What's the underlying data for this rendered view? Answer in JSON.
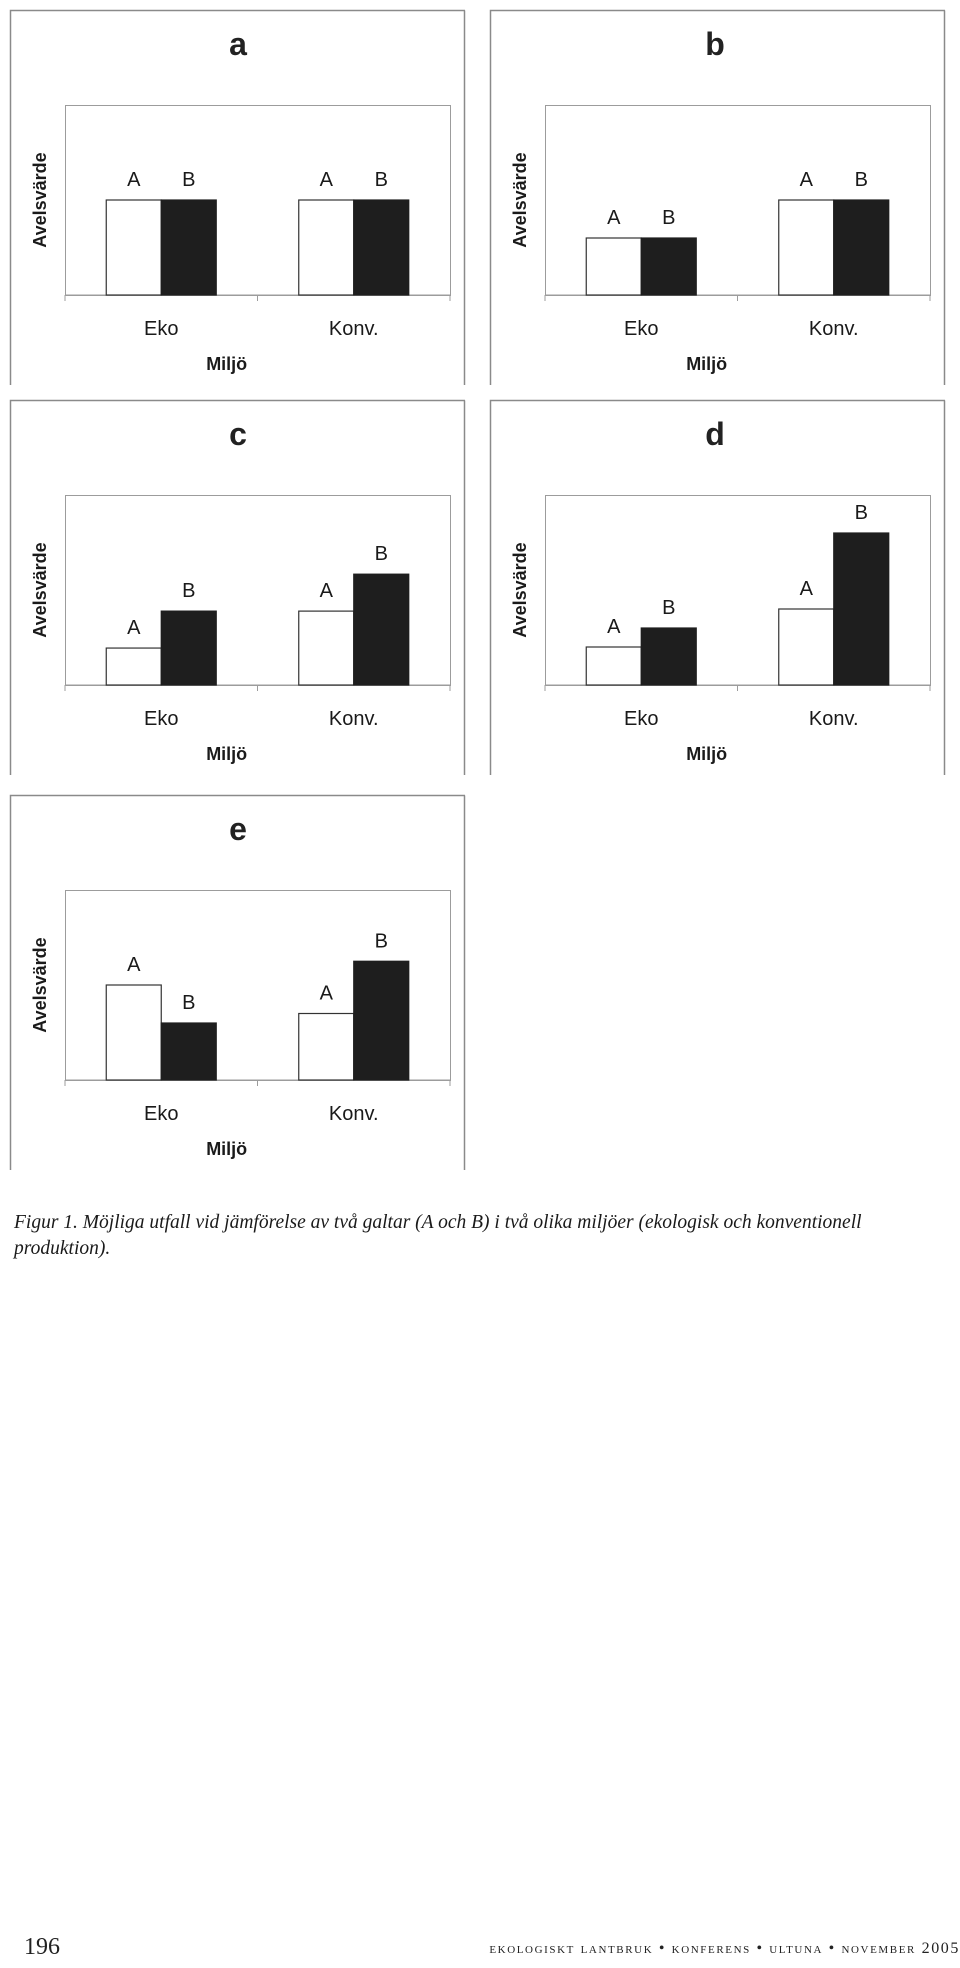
{
  "chart_data": [
    {
      "panel": "a",
      "type": "bar",
      "categories": [
        "Eko",
        "Konv."
      ],
      "series": [
        {
          "name": "A",
          "values": [
            1.0,
            1.0
          ]
        },
        {
          "name": "B",
          "values": [
            1.0,
            1.0
          ]
        }
      ],
      "xlabel": "Miljö",
      "ylabel": "Avelsvärde",
      "ylim": [
        0,
        2.0
      ],
      "grid": false
    },
    {
      "panel": "b",
      "type": "bar",
      "categories": [
        "Eko",
        "Konv."
      ],
      "series": [
        {
          "name": "A",
          "values": [
            0.6,
            1.0
          ]
        },
        {
          "name": "B",
          "values": [
            0.6,
            1.0
          ]
        }
      ],
      "xlabel": "Miljö",
      "ylabel": "Avelsvärde",
      "ylim": [
        0,
        2.0
      ],
      "grid": false
    },
    {
      "panel": "c",
      "type": "bar",
      "categories": [
        "Eko",
        "Konv."
      ],
      "series": [
        {
          "name": "A",
          "values": [
            0.35,
            0.7
          ]
        },
        {
          "name": "B",
          "values": [
            0.7,
            1.05
          ]
        }
      ],
      "xlabel": "Miljö",
      "ylabel": "Avelsvärde",
      "ylim": [
        0,
        1.8
      ],
      "grid": false
    },
    {
      "panel": "d",
      "type": "bar",
      "categories": [
        "Eko",
        "Konv."
      ],
      "series": [
        {
          "name": "A",
          "values": [
            0.4,
            0.8
          ]
        },
        {
          "name": "B",
          "values": [
            0.6,
            1.6
          ]
        }
      ],
      "xlabel": "Miljö",
      "ylabel": "Avelsvärde",
      "ylim": [
        0,
        2.0
      ],
      "grid": false
    },
    {
      "panel": "e",
      "type": "bar",
      "categories": [
        "Eko",
        "Konv."
      ],
      "series": [
        {
          "name": "A",
          "values": [
            1.0,
            0.7
          ]
        },
        {
          "name": "B",
          "values": [
            0.6,
            1.25
          ]
        }
      ],
      "xlabel": "Miljö",
      "ylabel": "Avelsvärde",
      "ylim": [
        0,
        2.0
      ],
      "grid": false
    }
  ],
  "colors": {
    "series_A": "#ffffff",
    "series_B": "#1e1e1e"
  },
  "caption": "Figur 1. Möjliga utfall vid jämförelse av två galtar (A och B) i två olika miljöer (ekologisk och konventionell produktion).",
  "footer": {
    "page_number": "196",
    "running_head": "ekologiskt lantbruk • konferens • ultuna • november 2005"
  }
}
